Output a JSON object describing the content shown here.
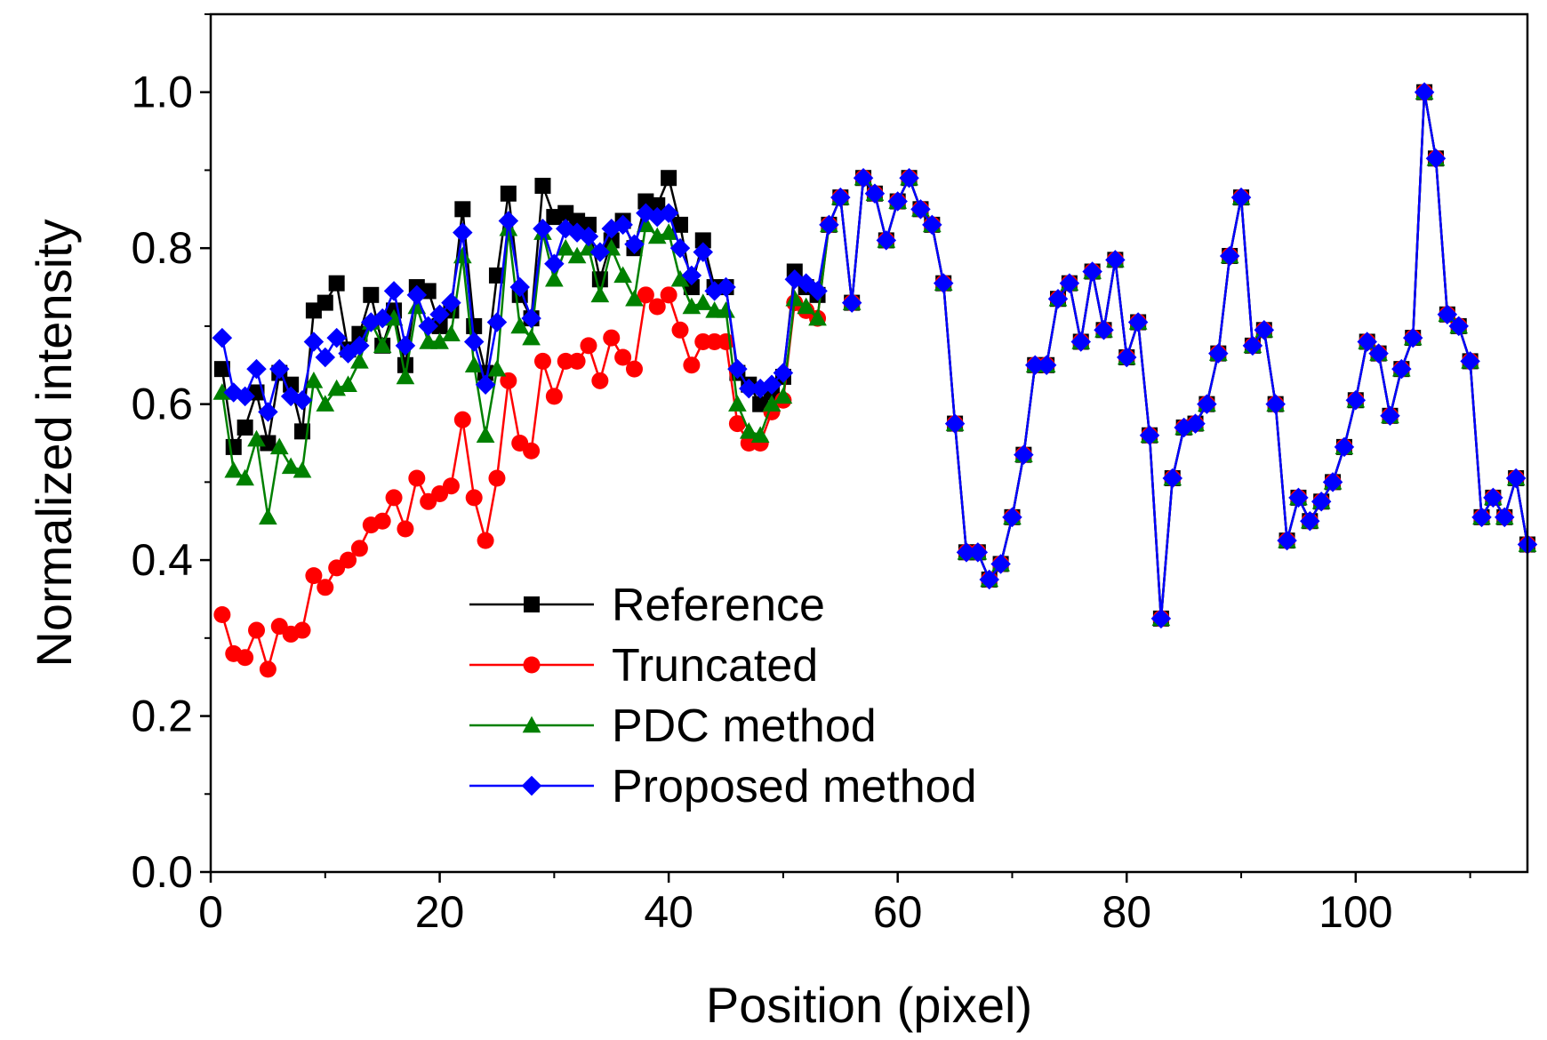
{
  "chart_data": {
    "type": "line",
    "title": "",
    "xlabel": "Position (pixel)",
    "ylabel": "Normalized intensity",
    "xlim": [
      0,
      115
    ],
    "ylim": [
      0,
      1.1
    ],
    "xticks": [
      0,
      20,
      40,
      60,
      80,
      100
    ],
    "xtick_labels": [
      "0",
      "20",
      "40",
      "60",
      "80",
      "100"
    ],
    "yticks": [
      0,
      0.2,
      0.4,
      0.6,
      0.8,
      1.0
    ],
    "ytick_labels": [
      "0.0",
      "0.2",
      "0.4",
      "0.6",
      "0.8",
      "1.0"
    ],
    "legend_position": "lower-center",
    "x": [
      1,
      2,
      3,
      4,
      5,
      6,
      7,
      8,
      9,
      10,
      11,
      12,
      13,
      14,
      15,
      16,
      17,
      18,
      19,
      20,
      21,
      22,
      23,
      24,
      25,
      26,
      27,
      28,
      29,
      30,
      31,
      32,
      33,
      34,
      35,
      36,
      37,
      38,
      39,
      40,
      41,
      42,
      43,
      44,
      45,
      46,
      47,
      48,
      49,
      50,
      51,
      52,
      53,
      54,
      55,
      56,
      57,
      58,
      59,
      60,
      61,
      62,
      63,
      64,
      65,
      66,
      67,
      68,
      69,
      70,
      71,
      72,
      73,
      74,
      75,
      76,
      77,
      78,
      79,
      80,
      81,
      82,
      83,
      84,
      85,
      86,
      87,
      88,
      89,
      90,
      91,
      92,
      93,
      94,
      95,
      96,
      97,
      98,
      99,
      100,
      101,
      102,
      103,
      104,
      105,
      106,
      107,
      108,
      109,
      110,
      111,
      112,
      113,
      114,
      115
    ],
    "series": [
      {
        "name": "Reference",
        "color": "#000000",
        "marker": "square",
        "values": [
          0.645,
          0.545,
          0.57,
          0.615,
          0.55,
          0.64,
          0.625,
          0.565,
          0.72,
          0.73,
          0.755,
          0.67,
          0.69,
          0.74,
          0.675,
          0.72,
          0.65,
          0.75,
          0.745,
          0.7,
          0.72,
          0.85,
          0.7,
          0.64,
          0.765,
          0.87,
          0.74,
          0.71,
          0.88,
          0.84,
          0.845,
          0.835,
          0.83,
          0.76,
          0.81,
          0.835,
          0.8,
          0.86,
          0.855,
          0.89,
          0.83,
          0.75,
          0.81,
          0.75,
          0.75,
          0.64,
          0.625,
          0.6,
          0.615,
          0.635,
          0.77,
          0.75,
          0.74,
          0.83,
          0.865,
          0.73,
          0.89,
          0.87,
          0.81,
          0.86,
          0.89,
          0.85,
          0.83,
          0.755,
          0.575,
          0.41,
          0.41,
          0.375,
          0.395,
          0.455,
          0.535,
          0.65,
          0.65,
          0.735,
          0.755,
          0.68,
          0.77,
          0.695,
          0.785,
          0.66,
          0.705,
          0.56,
          0.325,
          0.505,
          0.57,
          0.575,
          0.6,
          0.665,
          0.79,
          0.865,
          0.675,
          0.695,
          0.6,
          0.425,
          0.48,
          0.45,
          0.475,
          0.5,
          0.545,
          0.605,
          0.68,
          0.665,
          0.585,
          0.645,
          0.685,
          1.0,
          0.915,
          0.715,
          0.7,
          0.655,
          0.455,
          0.48,
          0.455,
          0.505,
          0.42
        ]
      },
      {
        "name": "Truncated",
        "color": "#ff0000",
        "marker": "circle",
        "values": [
          0.33,
          0.28,
          0.275,
          0.31,
          0.26,
          0.315,
          0.305,
          0.31,
          0.38,
          0.365,
          0.39,
          0.4,
          0.415,
          0.445,
          0.45,
          0.48,
          0.44,
          0.505,
          0.475,
          0.485,
          0.495,
          0.58,
          0.48,
          0.425,
          0.505,
          0.63,
          0.55,
          0.54,
          0.655,
          0.61,
          0.655,
          0.655,
          0.675,
          0.63,
          0.685,
          0.66,
          0.645,
          0.74,
          0.725,
          0.74,
          0.695,
          0.65,
          0.68,
          0.68,
          0.68,
          0.575,
          0.55,
          0.55,
          0.59,
          0.605,
          0.73,
          0.72,
          0.71,
          0.83,
          0.865,
          0.73,
          0.89,
          0.87,
          0.81,
          0.86,
          0.89,
          0.85,
          0.83,
          0.755,
          0.575,
          0.41,
          0.41,
          0.375,
          0.395,
          0.455,
          0.535,
          0.65,
          0.65,
          0.735,
          0.755,
          0.68,
          0.77,
          0.695,
          0.785,
          0.66,
          0.705,
          0.56,
          0.325,
          0.505,
          0.57,
          0.575,
          0.6,
          0.665,
          0.79,
          0.865,
          0.675,
          0.695,
          0.6,
          0.425,
          0.48,
          0.45,
          0.475,
          0.5,
          0.545,
          0.605,
          0.68,
          0.665,
          0.585,
          0.645,
          0.685,
          1.0,
          0.915,
          0.715,
          0.7,
          0.655,
          0.455,
          0.48,
          0.455,
          0.505,
          0.42
        ]
      },
      {
        "name": "PDC method",
        "color": "#008000",
        "marker": "triangle",
        "values": [
          0.615,
          0.515,
          0.505,
          0.555,
          0.455,
          0.545,
          0.52,
          0.515,
          0.63,
          0.6,
          0.62,
          0.625,
          0.655,
          0.705,
          0.675,
          0.71,
          0.635,
          0.725,
          0.68,
          0.68,
          0.69,
          0.79,
          0.65,
          0.56,
          0.645,
          0.825,
          0.7,
          0.685,
          0.82,
          0.76,
          0.8,
          0.79,
          0.8,
          0.74,
          0.8,
          0.765,
          0.735,
          0.83,
          0.815,
          0.82,
          0.76,
          0.725,
          0.73,
          0.72,
          0.72,
          0.6,
          0.565,
          0.56,
          0.6,
          0.61,
          0.735,
          0.725,
          0.71,
          0.83,
          0.865,
          0.73,
          0.89,
          0.87,
          0.81,
          0.86,
          0.89,
          0.85,
          0.83,
          0.755,
          0.575,
          0.41,
          0.41,
          0.375,
          0.395,
          0.455,
          0.535,
          0.65,
          0.65,
          0.735,
          0.755,
          0.68,
          0.77,
          0.695,
          0.785,
          0.66,
          0.705,
          0.56,
          0.325,
          0.505,
          0.57,
          0.575,
          0.6,
          0.665,
          0.79,
          0.865,
          0.675,
          0.695,
          0.6,
          0.425,
          0.48,
          0.45,
          0.475,
          0.5,
          0.545,
          0.605,
          0.68,
          0.665,
          0.585,
          0.645,
          0.685,
          1.0,
          0.915,
          0.715,
          0.7,
          0.655,
          0.455,
          0.48,
          0.455,
          0.505,
          0.42
        ]
      },
      {
        "name": "Proposed method",
        "color": "#0000ff",
        "marker": "diamond",
        "values": [
          0.685,
          0.615,
          0.61,
          0.645,
          0.59,
          0.645,
          0.61,
          0.605,
          0.68,
          0.66,
          0.685,
          0.665,
          0.675,
          0.705,
          0.71,
          0.745,
          0.675,
          0.74,
          0.7,
          0.715,
          0.73,
          0.82,
          0.68,
          0.625,
          0.705,
          0.835,
          0.75,
          0.71,
          0.825,
          0.78,
          0.825,
          0.82,
          0.815,
          0.795,
          0.825,
          0.83,
          0.805,
          0.845,
          0.84,
          0.845,
          0.8,
          0.765,
          0.795,
          0.745,
          0.75,
          0.645,
          0.62,
          0.62,
          0.625,
          0.64,
          0.76,
          0.755,
          0.745,
          0.83,
          0.865,
          0.73,
          0.89,
          0.87,
          0.81,
          0.86,
          0.89,
          0.85,
          0.83,
          0.755,
          0.575,
          0.41,
          0.41,
          0.375,
          0.395,
          0.455,
          0.535,
          0.65,
          0.65,
          0.735,
          0.755,
          0.68,
          0.77,
          0.695,
          0.785,
          0.66,
          0.705,
          0.56,
          0.325,
          0.505,
          0.57,
          0.575,
          0.6,
          0.665,
          0.79,
          0.865,
          0.675,
          0.695,
          0.6,
          0.425,
          0.48,
          0.45,
          0.475,
          0.5,
          0.545,
          0.605,
          0.68,
          0.665,
          0.585,
          0.645,
          0.685,
          1.0,
          0.915,
          0.715,
          0.7,
          0.655,
          0.455,
          0.48,
          0.455,
          0.505,
          0.42
        ]
      }
    ]
  }
}
